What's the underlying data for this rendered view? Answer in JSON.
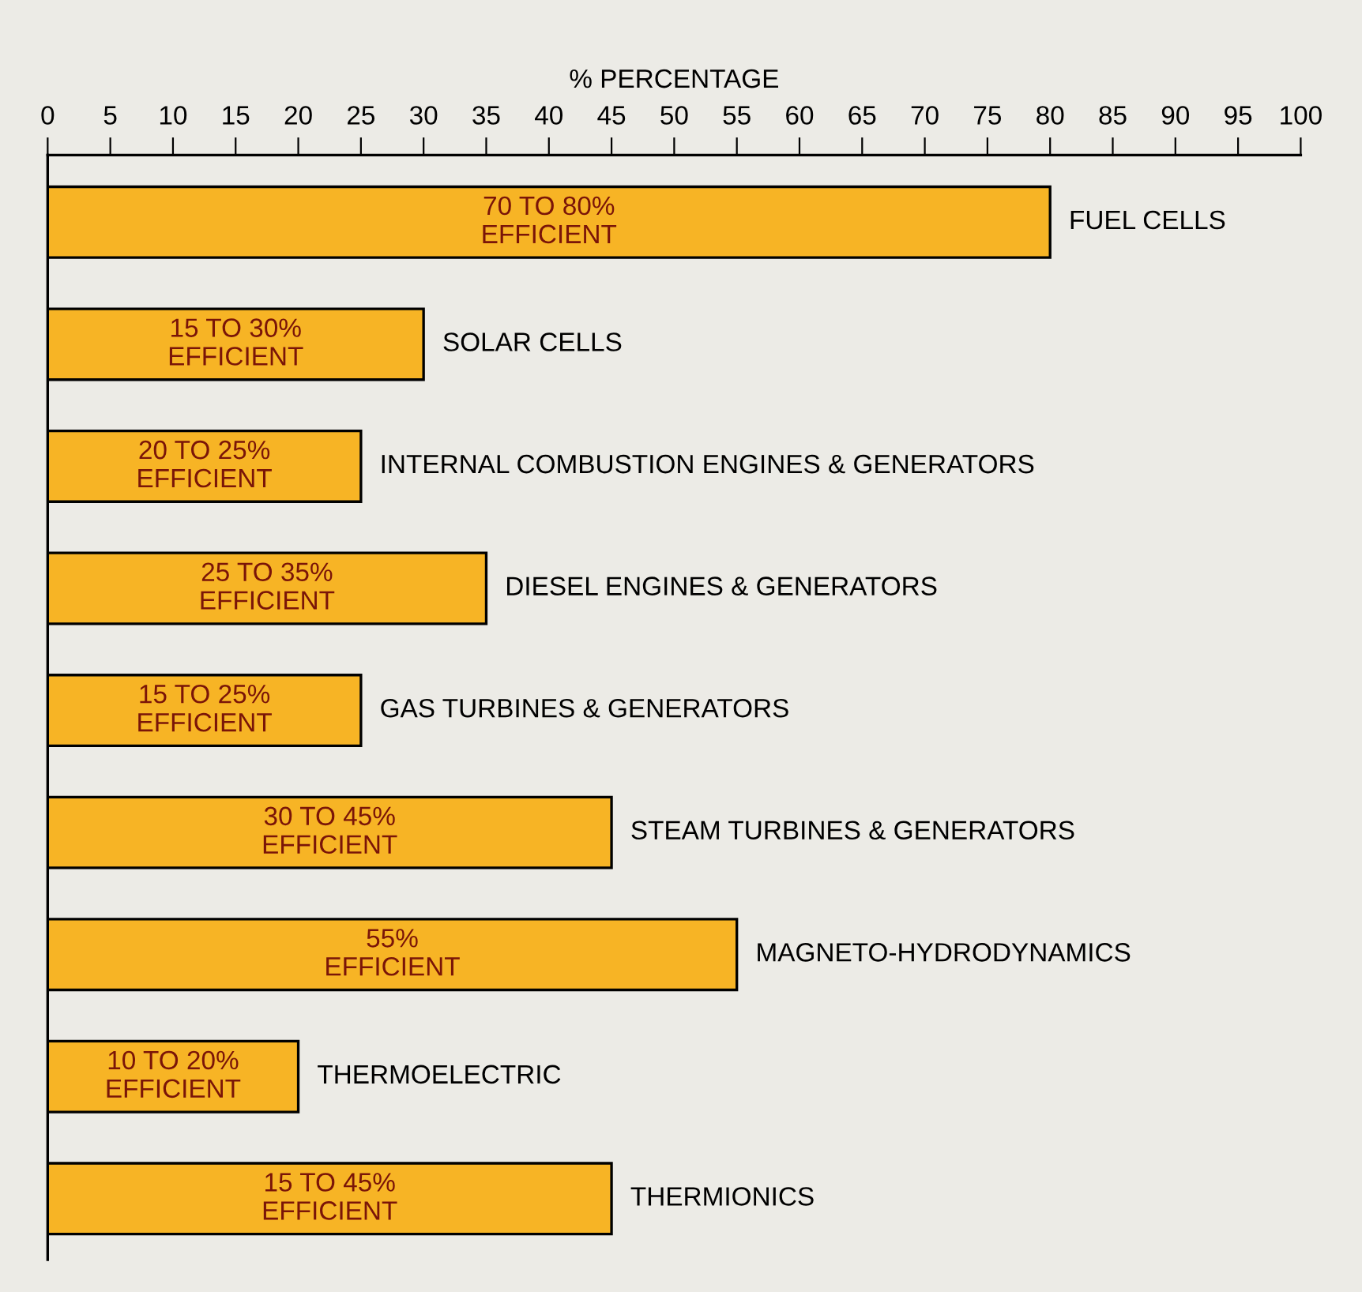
{
  "chart_data": {
    "type": "bar",
    "orientation": "horizontal",
    "xlabel": "% PERCENTAGE",
    "categories": [
      "FUEL CELLS",
      "SOLAR CELLS",
      "INTERNAL COMBUSTION ENGINES & GENERATORS",
      "DIESEL ENGINES & GENERATORS",
      "GAS TURBINES & GENERATORS",
      "STEAM TURBINES & GENERATORS",
      "MAGNETO-HYDRODYNAMICS",
      "THERMOELECTRIC",
      "THERMIONICS"
    ],
    "values": [
      80,
      30,
      25,
      35,
      25,
      45,
      55,
      20,
      45
    ],
    "value_labels": [
      "70 TO 80%\nEFFICIENT",
      "15 TO 30%\nEFFICIENT",
      "20 TO 25%\nEFFICIENT",
      "25 TO 35%\nEFFICIENT",
      "15 TO 25%\nEFFICIENT",
      "30 TO 45%\nEFFICIENT",
      "55%\nEFFICIENT",
      "10 TO 20%\nEFFICIENT",
      "15 TO 45%\nEFFICIENT"
    ],
    "color": "#f7b425",
    "xlim": [
      0,
      100
    ],
    "xticks": [
      0,
      5,
      10,
      15,
      20,
      25,
      30,
      35,
      40,
      45,
      50,
      55,
      60,
      65,
      70,
      75,
      80,
      85,
      90,
      95,
      100
    ],
    "tick_labels": "x",
    "grid": false,
    "legend": false
  }
}
